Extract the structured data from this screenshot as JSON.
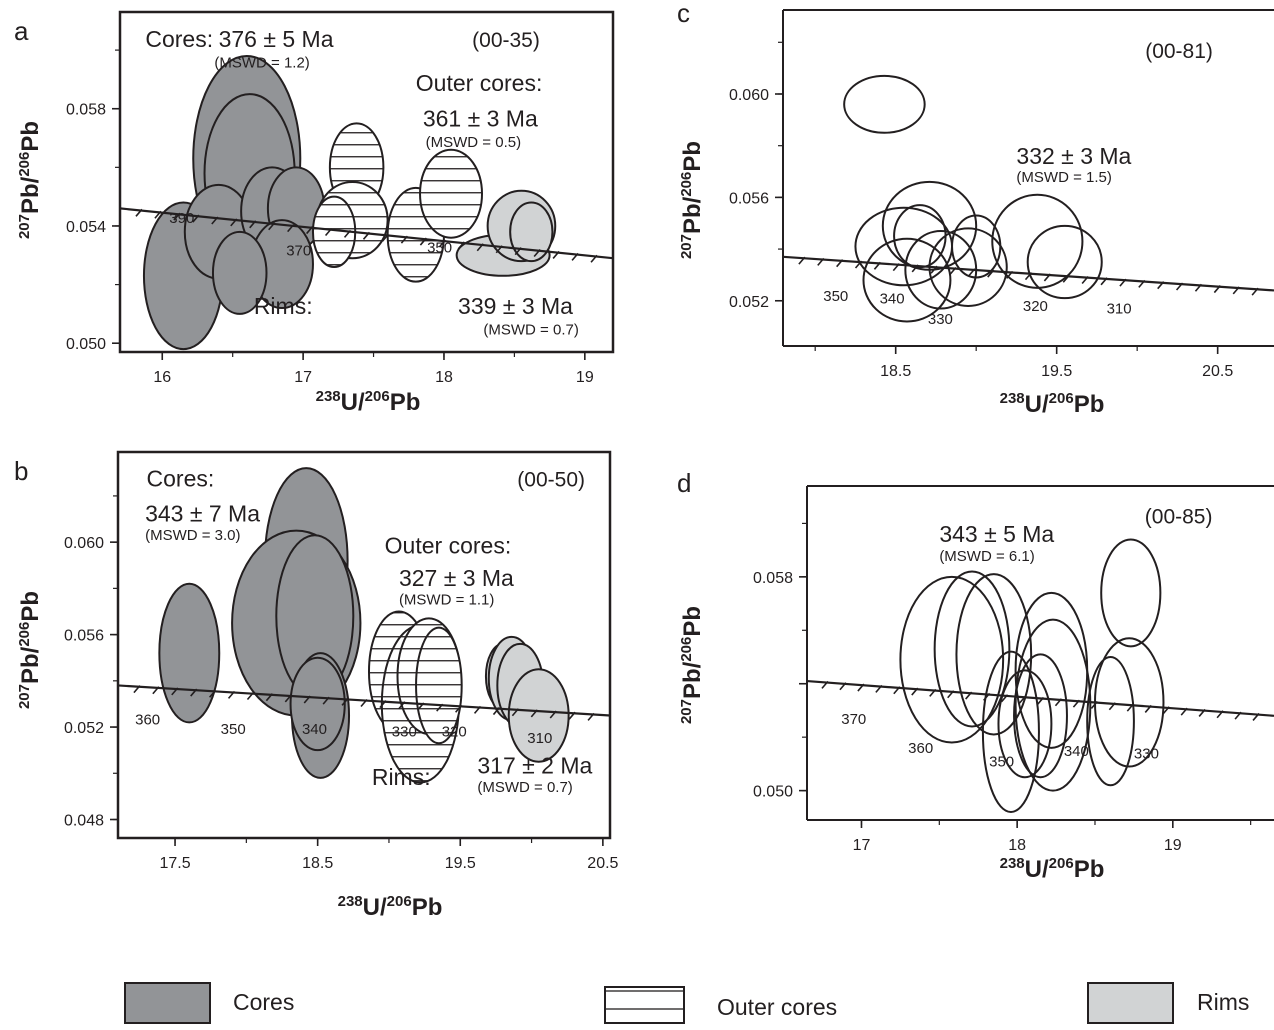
{
  "chart_data": [
    {
      "panel": "a",
      "type": "scatter",
      "sample": "(00-35)",
      "xlabel": {
        "iso1": "238",
        "el1": "U/",
        "iso2": "206",
        "el2": "Pb"
      },
      "ylabel": {
        "iso1": "207",
        "el1": "Pb/",
        "iso2": "206",
        "el2": "Pb"
      },
      "xlim": [
        15.7,
        19.2
      ],
      "ylim": [
        0.0497,
        0.0613
      ],
      "xticks": [
        16,
        17,
        18,
        19
      ],
      "yticks": [
        0.05,
        0.054,
        0.058
      ],
      "xtick_labels": [
        "16",
        "17",
        "18",
        "19"
      ],
      "ytick_labels": [
        "0.050",
        "0.054",
        "0.058"
      ],
      "concordia": [
        [
          15.7,
          0.0546
        ],
        [
          19.2,
          0.0529
        ]
      ],
      "concordia_ages": [
        {
          "label": "390",
          "x": 16.05,
          "y": 0.0541
        },
        {
          "label": "370",
          "x": 16.88,
          "y": 0.053
        },
        {
          "label": "350",
          "x": 17.88,
          "y": 0.0531
        }
      ],
      "annotations": [
        {
          "text": "Cores:",
          "x": 15.88,
          "y": 0.0601,
          "cls": "ann-big"
        },
        {
          "text": "376 ± 5 Ma",
          "x": 16.4,
          "y": 0.0601,
          "cls": "ann-big"
        },
        {
          "text": "(MSWD = 1.2)",
          "x": 16.37,
          "y": 0.0594,
          "cls": "ann-small"
        },
        {
          "text": "(00-35)",
          "x": 18.2,
          "y": 0.0601,
          "cls": "ann-id"
        },
        {
          "text": "Outer cores:",
          "x": 17.8,
          "y": 0.0586,
          "cls": "ann-big"
        },
        {
          "text": "361 ± 3 Ma",
          "x": 17.85,
          "y": 0.0574,
          "cls": "ann-big"
        },
        {
          "text": "(MSWD = 0.5)",
          "x": 17.87,
          "y": 0.0567,
          "cls": "ann-small"
        },
        {
          "text": "Rims:",
          "x": 16.65,
          "y": 0.051,
          "cls": "ann-big"
        },
        {
          "text": "339 ± 3 Ma",
          "x": 18.1,
          "y": 0.051,
          "cls": "ann-big"
        },
        {
          "text": "(MSWD = 0.7)",
          "x": 18.28,
          "y": 0.0503,
          "cls": "ann-small"
        }
      ],
      "ellipses": [
        {
          "group": "cores",
          "x": 16.15,
          "y": 0.0523,
          "rx": 0.28,
          "ry": 0.0025
        },
        {
          "group": "cores",
          "x": 16.6,
          "y": 0.0563,
          "rx": 0.38,
          "ry": 0.0035
        },
        {
          "group": "cores",
          "x": 16.62,
          "y": 0.0558,
          "rx": 0.32,
          "ry": 0.0027
        },
        {
          "group": "cores",
          "x": 16.4,
          "y": 0.0538,
          "rx": 0.24,
          "ry": 0.0016
        },
        {
          "group": "cores",
          "x": 16.78,
          "y": 0.0545,
          "rx": 0.22,
          "ry": 0.0015
        },
        {
          "group": "cores",
          "x": 16.95,
          "y": 0.0546,
          "rx": 0.2,
          "ry": 0.0014
        },
        {
          "group": "cores",
          "x": 16.85,
          "y": 0.0527,
          "rx": 0.22,
          "ry": 0.0015
        },
        {
          "group": "cores",
          "x": 16.55,
          "y": 0.0524,
          "rx": 0.19,
          "ry": 0.0014
        },
        {
          "group": "outer",
          "x": 17.38,
          "y": 0.056,
          "rx": 0.19,
          "ry": 0.0015
        },
        {
          "group": "outer",
          "x": 17.35,
          "y": 0.0542,
          "rx": 0.25,
          "ry": 0.0013
        },
        {
          "group": "outer",
          "x": 17.22,
          "y": 0.0538,
          "rx": 0.15,
          "ry": 0.0012
        },
        {
          "group": "outer",
          "x": 17.8,
          "y": 0.0537,
          "rx": 0.2,
          "ry": 0.0016
        },
        {
          "group": "outer",
          "x": 18.05,
          "y": 0.0551,
          "rx": 0.22,
          "ry": 0.0015
        },
        {
          "group": "rims",
          "x": 18.42,
          "y": 0.053,
          "rx": 0.33,
          "ry": 0.0007
        },
        {
          "group": "rims",
          "x": 18.55,
          "y": 0.054,
          "rx": 0.24,
          "ry": 0.0012
        },
        {
          "group": "rims",
          "x": 18.62,
          "y": 0.0538,
          "rx": 0.15,
          "ry": 0.001
        }
      ]
    },
    {
      "panel": "b",
      "type": "scatter",
      "sample": "(00-50)",
      "xlabel": {
        "iso1": "238",
        "el1": "U/",
        "iso2": "206",
        "el2": "Pb"
      },
      "ylabel": {
        "iso1": "207",
        "el1": "Pb/",
        "iso2": "206",
        "el2": "Pb"
      },
      "xlim": [
        17.1,
        20.55
      ],
      "ylim": [
        0.0472,
        0.0639
      ],
      "xticks": [
        17.5,
        18.5,
        19.5,
        20.5
      ],
      "yticks": [
        0.048,
        0.052,
        0.056,
        0.06
      ],
      "xtick_labels": [
        "17.5",
        "18.5",
        "19.5",
        "20.5"
      ],
      "ytick_labels": [
        "0.048",
        "0.052",
        "0.056",
        "0.060"
      ],
      "concordia": [
        [
          17.1,
          0.0538
        ],
        [
          20.55,
          0.0525
        ]
      ],
      "concordia_ages": [
        {
          "label": "360",
          "x": 17.22,
          "y": 0.0521
        },
        {
          "label": "350",
          "x": 17.82,
          "y": 0.0517
        },
        {
          "label": "340",
          "x": 18.39,
          "y": 0.0517
        },
        {
          "label": "330",
          "x": 19.02,
          "y": 0.0516
        },
        {
          "label": "320",
          "x": 19.37,
          "y": 0.0516
        },
        {
          "label": "310",
          "x": 19.97,
          "y": 0.0513
        }
      ],
      "annotations": [
        {
          "text": "Cores:",
          "x": 17.3,
          "y": 0.0624,
          "cls": "ann-big"
        },
        {
          "text": "343 ± 7 Ma",
          "x": 17.29,
          "y": 0.0609,
          "cls": "ann-big"
        },
        {
          "text": "(MSWD = 3.0)",
          "x": 17.29,
          "y": 0.0601,
          "cls": "ann-small"
        },
        {
          "text": "(00-50)",
          "x": 19.9,
          "y": 0.0624,
          "cls": "ann-id"
        },
        {
          "text": "Outer cores:",
          "x": 18.97,
          "y": 0.0595,
          "cls": "ann-big"
        },
        {
          "text": "327 ± 3 Ma",
          "x": 19.07,
          "y": 0.0581,
          "cls": "ann-big"
        },
        {
          "text": "(MSWD = 1.1)",
          "x": 19.07,
          "y": 0.0573,
          "cls": "ann-small"
        },
        {
          "text": "317 ± 2 Ma",
          "x": 19.62,
          "y": 0.05,
          "cls": "ann-big"
        },
        {
          "text": "Rims:",
          "x": 18.88,
          "y": 0.0495,
          "cls": "ann-big"
        },
        {
          "text": "(MSWD = 0.7)",
          "x": 19.62,
          "y": 0.0492,
          "cls": "ann-small"
        }
      ],
      "ellipses": [
        {
          "group": "cores",
          "x": 17.6,
          "y": 0.0552,
          "rx": 0.21,
          "ry": 0.003
        },
        {
          "group": "cores",
          "x": 18.42,
          "y": 0.0592,
          "rx": 0.29,
          "ry": 0.004
        },
        {
          "group": "cores",
          "x": 18.35,
          "y": 0.0565,
          "rx": 0.45,
          "ry": 0.004
        },
        {
          "group": "cores",
          "x": 18.48,
          "y": 0.0568,
          "rx": 0.27,
          "ry": 0.0035
        },
        {
          "group": "cores",
          "x": 18.52,
          "y": 0.0525,
          "rx": 0.2,
          "ry": 0.0027
        },
        {
          "group": "cores",
          "x": 18.5,
          "y": 0.053,
          "rx": 0.19,
          "ry": 0.002
        },
        {
          "group": "outer",
          "x": 19.07,
          "y": 0.0544,
          "rx": 0.21,
          "ry": 0.0026
        },
        {
          "group": "outer",
          "x": 19.22,
          "y": 0.053,
          "rx": 0.27,
          "ry": 0.0034
        },
        {
          "group": "outer",
          "x": 19.28,
          "y": 0.0542,
          "rx": 0.22,
          "ry": 0.0025
        },
        {
          "group": "outer",
          "x": 19.35,
          "y": 0.0538,
          "rx": 0.16,
          "ry": 0.0025
        },
        {
          "group": "rims",
          "x": 19.8,
          "y": 0.0542,
          "rx": 0.12,
          "ry": 0.0014
        },
        {
          "group": "rims",
          "x": 19.86,
          "y": 0.0541,
          "rx": 0.16,
          "ry": 0.0018
        },
        {
          "group": "rims",
          "x": 19.92,
          "y": 0.0538,
          "rx": 0.16,
          "ry": 0.0018
        },
        {
          "group": "rims",
          "x": 20.05,
          "y": 0.0525,
          "rx": 0.21,
          "ry": 0.002
        }
      ]
    },
    {
      "panel": "c",
      "type": "scatter",
      "sample": "(00-81)",
      "xlabel": {
        "iso1": "238",
        "el1": "U/",
        "iso2": "206",
        "el2": "Pb"
      },
      "ylabel": {
        "iso1": "207",
        "el1": "Pb/",
        "iso2": "206",
        "el2": "Pb"
      },
      "xlim": [
        17.8,
        20.85
      ],
      "ylim": [
        0.05025,
        0.06325
      ],
      "xticks": [
        18.5,
        19.5,
        20.5
      ],
      "yticks": [
        0.052,
        0.056,
        0.06
      ],
      "xtick_labels": [
        "18.5",
        "19.5",
        "20.5"
      ],
      "ytick_labels": [
        "0.052",
        "0.056",
        "0.060"
      ],
      "concordia": [
        [
          17.8,
          0.0537
        ],
        [
          20.85,
          0.0524
        ]
      ],
      "concordia_ages": [
        {
          "label": "350",
          "x": 18.05,
          "y": 0.052
        },
        {
          "label": "340",
          "x": 18.4,
          "y": 0.0519
        },
        {
          "label": "330",
          "x": 18.7,
          "y": 0.0511
        },
        {
          "label": "320",
          "x": 19.29,
          "y": 0.0516
        },
        {
          "label": "310",
          "x": 19.81,
          "y": 0.0515
        }
      ],
      "annotations": [
        {
          "text": "(00-81)",
          "x": 20.05,
          "y": 0.0614,
          "cls": "ann-id"
        },
        {
          "text": "332 ± 3 Ma",
          "x": 19.25,
          "y": 0.0573,
          "cls": "ann-big"
        },
        {
          "text": "(MSWD = 1.5)",
          "x": 19.25,
          "y": 0.0566,
          "cls": "ann-small"
        }
      ],
      "ellipses": [
        {
          "group": "plain",
          "x": 18.43,
          "y": 0.0596,
          "rx": 0.25,
          "ry": 0.0011
        },
        {
          "group": "plain",
          "x": 18.55,
          "y": 0.0541,
          "rx": 0.3,
          "ry": 0.0015
        },
        {
          "group": "plain",
          "x": 18.71,
          "y": 0.0549,
          "rx": 0.29,
          "ry": 0.0017
        },
        {
          "group": "plain",
          "x": 18.65,
          "y": 0.0545,
          "rx": 0.16,
          "ry": 0.0012
        },
        {
          "group": "plain",
          "x": 18.57,
          "y": 0.0528,
          "rx": 0.27,
          "ry": 0.0016
        },
        {
          "group": "plain",
          "x": 18.78,
          "y": 0.0532,
          "rx": 0.22,
          "ry": 0.0015
        },
        {
          "group": "plain",
          "x": 18.95,
          "y": 0.0533,
          "rx": 0.24,
          "ry": 0.0015
        },
        {
          "group": "plain",
          "x": 19.0,
          "y": 0.0541,
          "rx": 0.15,
          "ry": 0.0012
        },
        {
          "group": "plain",
          "x": 19.38,
          "y": 0.0543,
          "rx": 0.28,
          "ry": 0.0018
        },
        {
          "group": "plain",
          "x": 19.55,
          "y": 0.0535,
          "rx": 0.23,
          "ry": 0.0014
        }
      ]
    },
    {
      "panel": "d",
      "type": "scatter",
      "sample": "(00-85)",
      "xlabel": {
        "iso1": "238",
        "el1": "U/",
        "iso2": "206",
        "el2": "Pb"
      },
      "ylabel": {
        "iso1": "207",
        "el1": "Pb/",
        "iso2": "206",
        "el2": "Pb"
      },
      "xlim": [
        16.65,
        19.65
      ],
      "ylim": [
        0.0489,
        0.0614
      ],
      "xticks": [
        17,
        18,
        19
      ],
      "yticks": [
        0.05,
        0.054,
        0.058
      ],
      "xtick_labels": [
        "17",
        "18",
        "19"
      ],
      "ytick_labels": [
        "0.050",
        "",
        "0.058"
      ],
      "concordia": [
        [
          16.65,
          0.0541
        ],
        [
          19.65,
          0.0528
        ]
      ],
      "concordia_ages": [
        {
          "label": "370",
          "x": 16.87,
          "y": 0.0525
        },
        {
          "label": "360",
          "x": 17.3,
          "y": 0.0514
        },
        {
          "label": "350",
          "x": 17.82,
          "y": 0.0509
        },
        {
          "label": "340",
          "x": 18.3,
          "y": 0.0513
        },
        {
          "label": "330",
          "x": 18.75,
          "y": 0.0512
        }
      ],
      "annotations": [
        {
          "text": "(00-85)",
          "x": 18.82,
          "y": 0.06,
          "cls": "ann-id"
        },
        {
          "text": "343 ± 5 Ma",
          "x": 17.5,
          "y": 0.0593,
          "cls": "ann-big"
        },
        {
          "text": "(MSWD = 6.1)",
          "x": 17.5,
          "y": 0.0586,
          "cls": "ann-small"
        }
      ],
      "ellipses": [
        {
          "group": "plain",
          "x": 17.58,
          "y": 0.0549,
          "rx": 0.33,
          "ry": 0.0031
        },
        {
          "group": "plain",
          "x": 17.71,
          "y": 0.0553,
          "rx": 0.24,
          "ry": 0.0029
        },
        {
          "group": "plain",
          "x": 17.85,
          "y": 0.0551,
          "rx": 0.24,
          "ry": 0.003
        },
        {
          "group": "plain",
          "x": 17.96,
          "y": 0.0522,
          "rx": 0.18,
          "ry": 0.003
        },
        {
          "group": "plain",
          "x": 18.05,
          "y": 0.0525,
          "rx": 0.17,
          "ry": 0.002
        },
        {
          "group": "plain",
          "x": 18.15,
          "y": 0.0528,
          "rx": 0.17,
          "ry": 0.0023
        },
        {
          "group": "plain",
          "x": 18.22,
          "y": 0.0545,
          "rx": 0.23,
          "ry": 0.0029
        },
        {
          "group": "plain",
          "x": 18.23,
          "y": 0.0532,
          "rx": 0.24,
          "ry": 0.0032
        },
        {
          "group": "plain",
          "x": 18.6,
          "y": 0.0526,
          "rx": 0.15,
          "ry": 0.0024
        },
        {
          "group": "plain",
          "x": 18.72,
          "y": 0.0533,
          "rx": 0.22,
          "ry": 0.0024
        },
        {
          "group": "plain",
          "x": 18.73,
          "y": 0.0574,
          "rx": 0.19,
          "ry": 0.002
        }
      ]
    }
  ],
  "panel_letters": [
    "a",
    "b",
    "c",
    "d"
  ],
  "legend": [
    {
      "key": "cores",
      "label": "Cores"
    },
    {
      "key": "outer",
      "label": "Outer cores"
    },
    {
      "key": "rims",
      "label": "Rims"
    }
  ],
  "colors": {
    "cores": "#929497",
    "rims": "#d1d3d4",
    "outer": "#ffffff",
    "line": "#231f20"
  }
}
